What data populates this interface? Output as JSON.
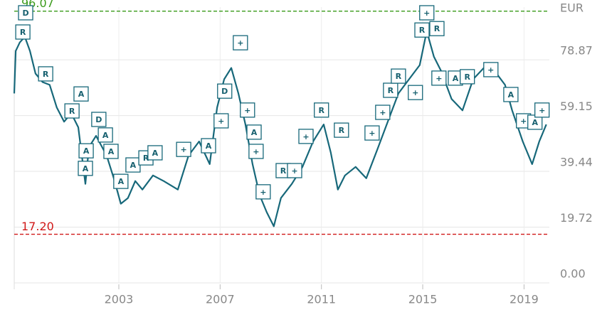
{
  "chart_data": {
    "type": "line",
    "unit": "EUR",
    "color": "#17687a",
    "grid": true,
    "xlim": [
      1998.87,
      2020.0
    ],
    "xticks": [
      2003,
      2007,
      2011,
      2015,
      2019
    ],
    "ylim": [
      0,
      97.5
    ],
    "yticks": [
      {
        "value": 0,
        "label": "0.00"
      },
      {
        "value": 19.72,
        "label": "19.72"
      },
      {
        "value": 39.44,
        "label": "39.44"
      },
      {
        "value": 59.15,
        "label": "59.15"
      },
      {
        "value": 78.87,
        "label": "78.87"
      }
    ],
    "ref_lines": [
      {
        "value": 96.07,
        "label": "96.07",
        "color": "#3a9a1a"
      },
      {
        "value": 17.2,
        "label": "17.20",
        "color": "#d01818"
      }
    ],
    "x": [
      1998.87,
      1998.93,
      1999.09,
      1999.29,
      1999.49,
      1999.71,
      1999.99,
      2000.27,
      2000.55,
      2000.84,
      2001.12,
      2001.4,
      2001.68,
      2001.82,
      2002.1,
      2002.52,
      2002.8,
      2003.08,
      2003.36,
      2003.65,
      2003.93,
      2004.35,
      2004.77,
      2005.33,
      2005.75,
      2006.17,
      2006.59,
      2006.88,
      2007.16,
      2007.44,
      2007.72,
      2008.0,
      2008.28,
      2008.56,
      2008.84,
      2009.12,
      2009.4,
      2009.83,
      2010.25,
      2010.67,
      2011.09,
      2011.37,
      2011.65,
      2011.93,
      2012.35,
      2012.77,
      2013.2,
      2013.62,
      2014.04,
      2014.46,
      2014.88,
      2015.16,
      2015.44,
      2015.72,
      2016.14,
      2016.57,
      2016.99,
      2017.41,
      2017.83,
      2018.25,
      2018.53,
      2018.95,
      2019.32,
      2019.6,
      2019.88
    ],
    "values": [
      67,
      82,
      85,
      87,
      82,
      74,
      71,
      70,
      62,
      57,
      60,
      55,
      35,
      48,
      52,
      45,
      37,
      28,
      30,
      36,
      33,
      38,
      36,
      33,
      45,
      50,
      42,
      62,
      72,
      76,
      67,
      56,
      42,
      31,
      25,
      20,
      30,
      35,
      41,
      50,
      56,
      46,
      33,
      38,
      41,
      37,
      47,
      57,
      67,
      72,
      77,
      89,
      80,
      75,
      65,
      61,
      72,
      76,
      75,
      70,
      61,
      50,
      42,
      50,
      56
    ],
    "events": [
      {
        "x": 1999.32,
        "value": 95.5,
        "label": "D"
      },
      {
        "x": 1999.21,
        "value": 88.7,
        "label": "R"
      },
      {
        "x": 2000.11,
        "value": 73.9,
        "label": "R"
      },
      {
        "x": 2001.15,
        "value": 60.8,
        "label": "R"
      },
      {
        "x": 2001.51,
        "value": 66.8,
        "label": "A"
      },
      {
        "x": 2002.21,
        "value": 57.8,
        "label": "D"
      },
      {
        "x": 2002.47,
        "value": 52.3,
        "label": "A"
      },
      {
        "x": 2001.71,
        "value": 46.7,
        "label": "A"
      },
      {
        "x": 2001.68,
        "value": 40.5,
        "label": "A"
      },
      {
        "x": 2002.69,
        "value": 46.5,
        "label": "A"
      },
      {
        "x": 2003.08,
        "value": 35.9,
        "label": "A"
      },
      {
        "x": 2003.56,
        "value": 41.7,
        "label": "A"
      },
      {
        "x": 2004.07,
        "value": 44.2,
        "label": "R"
      },
      {
        "x": 2004.43,
        "value": 46.0,
        "label": "A"
      },
      {
        "x": 2005.56,
        "value": 47.2,
        "label": "+"
      },
      {
        "x": 2006.54,
        "value": 48.5,
        "label": "A"
      },
      {
        "x": 2007.04,
        "value": 57.3,
        "label": "+"
      },
      {
        "x": 2007.18,
        "value": 67.8,
        "label": "D"
      },
      {
        "x": 2007.8,
        "value": 84.9,
        "label": "+"
      },
      {
        "x": 2008.08,
        "value": 61.1,
        "label": "+"
      },
      {
        "x": 2008.34,
        "value": 53.3,
        "label": "A"
      },
      {
        "x": 2008.42,
        "value": 46.5,
        "label": "+"
      },
      {
        "x": 2008.7,
        "value": 32.2,
        "label": "+"
      },
      {
        "x": 2009.49,
        "value": 39.7,
        "label": "R"
      },
      {
        "x": 2009.94,
        "value": 39.7,
        "label": "+"
      },
      {
        "x": 2010.39,
        "value": 51.8,
        "label": "+"
      },
      {
        "x": 2011.0,
        "value": 61.1,
        "label": "R"
      },
      {
        "x": 2011.79,
        "value": 54.0,
        "label": "R"
      },
      {
        "x": 2013.0,
        "value": 53.0,
        "label": "+"
      },
      {
        "x": 2013.42,
        "value": 60.3,
        "label": "+"
      },
      {
        "x": 2013.73,
        "value": 68.1,
        "label": "R"
      },
      {
        "x": 2014.04,
        "value": 73.1,
        "label": "R"
      },
      {
        "x": 2014.71,
        "value": 67.3,
        "label": "+"
      },
      {
        "x": 2014.97,
        "value": 89.4,
        "label": "R"
      },
      {
        "x": 2015.16,
        "value": 95.5,
        "label": "+"
      },
      {
        "x": 2015.56,
        "value": 89.9,
        "label": "R"
      },
      {
        "x": 2015.64,
        "value": 72.4,
        "label": "+"
      },
      {
        "x": 2016.29,
        "value": 72.4,
        "label": "A"
      },
      {
        "x": 2016.76,
        "value": 72.9,
        "label": "R"
      },
      {
        "x": 2017.69,
        "value": 75.4,
        "label": "+"
      },
      {
        "x": 2018.48,
        "value": 66.6,
        "label": "A"
      },
      {
        "x": 2018.98,
        "value": 57.3,
        "label": "+"
      },
      {
        "x": 2019.43,
        "value": 56.8,
        "label": "A"
      },
      {
        "x": 2019.71,
        "value": 61.1,
        "label": "+"
      }
    ]
  }
}
